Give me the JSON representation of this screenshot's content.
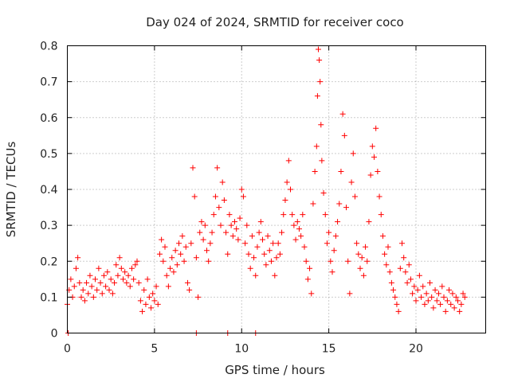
{
  "chart_data": {
    "type": "scatter",
    "title": "Day 024 of 2024, SRMTID for receiver coco",
    "xlabel": "GPS time / hours",
    "ylabel": "SRMTID / TECUs",
    "xlim": [
      0,
      24
    ],
    "ylim": [
      0,
      0.8
    ],
    "x_ticks": [
      0,
      5,
      10,
      15,
      20
    ],
    "x_tick_labels": [
      "0",
      "5",
      "10",
      "15",
      "20"
    ],
    "y_ticks": [
      0,
      0.1,
      0.2,
      0.3,
      0.4,
      0.5,
      0.6,
      0.7,
      0.8
    ],
    "y_tick_labels": [
      "0",
      "0.1",
      "0.2",
      "0.3",
      "0.4",
      "0.5",
      "0.6",
      "0.7",
      "0.8"
    ],
    "grid": true,
    "marker": "+",
    "color": "#ff0000",
    "series": [
      {
        "name": "SRMTID",
        "points": [
          [
            0.0,
            0.08
          ],
          [
            0.1,
            0.12
          ],
          [
            0.2,
            0.15
          ],
          [
            0.3,
            0.1
          ],
          [
            0.4,
            0.13
          ],
          [
            0.5,
            0.18
          ],
          [
            0.6,
            0.21
          ],
          [
            0.7,
            0.14
          ],
          [
            0.8,
            0.1
          ],
          [
            0.9,
            0.12
          ],
          [
            1.0,
            0.09
          ],
          [
            1.1,
            0.14
          ],
          [
            1.2,
            0.11
          ],
          [
            1.3,
            0.16
          ],
          [
            1.4,
            0.13
          ],
          [
            1.5,
            0.1
          ],
          [
            1.6,
            0.15
          ],
          [
            1.7,
            0.12
          ],
          [
            1.8,
            0.18
          ],
          [
            1.9,
            0.14
          ],
          [
            2.0,
            0.11
          ],
          [
            2.1,
            0.16
          ],
          [
            2.2,
            0.13
          ],
          [
            2.3,
            0.17
          ],
          [
            2.4,
            0.12
          ],
          [
            2.5,
            0.15
          ],
          [
            2.6,
            0.11
          ],
          [
            2.7,
            0.14
          ],
          [
            2.8,
            0.19
          ],
          [
            2.9,
            0.16
          ],
          [
            3.0,
            0.21
          ],
          [
            3.1,
            0.18
          ],
          [
            3.2,
            0.15
          ],
          [
            3.3,
            0.17
          ],
          [
            3.4,
            0.14
          ],
          [
            3.5,
            0.16
          ],
          [
            3.6,
            0.13
          ],
          [
            3.7,
            0.18
          ],
          [
            3.8,
            0.15
          ],
          [
            3.9,
            0.19
          ],
          [
            4.0,
            0.2
          ],
          [
            4.1,
            0.14
          ],
          [
            4.2,
            0.09
          ],
          [
            4.3,
            0.06
          ],
          [
            4.4,
            0.12
          ],
          [
            4.5,
            0.08
          ],
          [
            4.6,
            0.15
          ],
          [
            4.7,
            0.1
          ],
          [
            4.8,
            0.07
          ],
          [
            4.9,
            0.11
          ],
          [
            5.0,
            0.09
          ],
          [
            5.1,
            0.13
          ],
          [
            5.2,
            0.08
          ],
          [
            5.3,
            0.22
          ],
          [
            5.4,
            0.26
          ],
          [
            5.5,
            0.2
          ],
          [
            5.6,
            0.24
          ],
          [
            5.7,
            0.16
          ],
          [
            5.8,
            0.13
          ],
          [
            5.9,
            0.18
          ],
          [
            6.0,
            0.21
          ],
          [
            6.1,
            0.17
          ],
          [
            6.2,
            0.23
          ],
          [
            6.3,
            0.19
          ],
          [
            6.4,
            0.25
          ],
          [
            6.5,
            0.22
          ],
          [
            6.6,
            0.27
          ],
          [
            6.7,
            0.2
          ],
          [
            6.8,
            0.24
          ],
          [
            6.9,
            0.14
          ],
          [
            7.0,
            0.12
          ],
          [
            7.1,
            0.25
          ],
          [
            7.2,
            0.46
          ],
          [
            7.3,
            0.38
          ],
          [
            7.4,
            0.21
          ],
          [
            7.5,
            0.1
          ],
          [
            7.6,
            0.28
          ],
          [
            7.7,
            0.31
          ],
          [
            7.8,
            0.26
          ],
          [
            7.9,
            0.3
          ],
          [
            8.0,
            0.23
          ],
          [
            8.1,
            0.2
          ],
          [
            8.2,
            0.25
          ],
          [
            8.3,
            0.28
          ],
          [
            8.4,
            0.33
          ],
          [
            8.5,
            0.38
          ],
          [
            8.6,
            0.46
          ],
          [
            8.7,
            0.35
          ],
          [
            8.8,
            0.3
          ],
          [
            8.9,
            0.42
          ],
          [
            9.0,
            0.37
          ],
          [
            9.1,
            0.28
          ],
          [
            9.2,
            0.22
          ],
          [
            9.3,
            0.33
          ],
          [
            9.4,
            0.3
          ],
          [
            9.5,
            0.27
          ],
          [
            9.6,
            0.31
          ],
          [
            9.7,
            0.29
          ],
          [
            9.8,
            0.26
          ],
          [
            9.9,
            0.32
          ],
          [
            10.0,
            0.4
          ],
          [
            10.1,
            0.38
          ],
          [
            10.2,
            0.25
          ],
          [
            10.3,
            0.3
          ],
          [
            10.4,
            0.22
          ],
          [
            10.5,
            0.18
          ],
          [
            10.6,
            0.27
          ],
          [
            10.7,
            0.21
          ],
          [
            10.8,
            0.16
          ],
          [
            10.9,
            0.24
          ],
          [
            11.0,
            0.28
          ],
          [
            11.1,
            0.31
          ],
          [
            11.2,
            0.26
          ],
          [
            11.3,
            0.22
          ],
          [
            11.4,
            0.19
          ],
          [
            11.5,
            0.27
          ],
          [
            11.6,
            0.23
          ],
          [
            11.7,
            0.2
          ],
          [
            11.8,
            0.25
          ],
          [
            11.9,
            0.16
          ],
          [
            12.0,
            0.21
          ],
          [
            12.1,
            0.25
          ],
          [
            12.2,
            0.22
          ],
          [
            12.3,
            0.28
          ],
          [
            12.4,
            0.33
          ],
          [
            12.5,
            0.37
          ],
          [
            12.6,
            0.42
          ],
          [
            12.7,
            0.48
          ],
          [
            12.8,
            0.4
          ],
          [
            12.9,
            0.33
          ],
          [
            13.0,
            0.3
          ],
          [
            13.1,
            0.26
          ],
          [
            13.2,
            0.31
          ],
          [
            13.3,
            0.29
          ],
          [
            13.4,
            0.27
          ],
          [
            13.5,
            0.33
          ],
          [
            13.6,
            0.24
          ],
          [
            13.7,
            0.2
          ],
          [
            13.8,
            0.15
          ],
          [
            13.9,
            0.18
          ],
          [
            14.0,
            0.11
          ],
          [
            14.1,
            0.36
          ],
          [
            14.2,
            0.45
          ],
          [
            14.3,
            0.52
          ],
          [
            14.35,
            0.66
          ],
          [
            14.4,
            0.79
          ],
          [
            14.45,
            0.76
          ],
          [
            14.5,
            0.7
          ],
          [
            14.55,
            0.58
          ],
          [
            14.6,
            0.48
          ],
          [
            14.7,
            0.39
          ],
          [
            14.8,
            0.33
          ],
          [
            14.9,
            0.25
          ],
          [
            15.0,
            0.28
          ],
          [
            15.1,
            0.2
          ],
          [
            15.2,
            0.17
          ],
          [
            15.3,
            0.23
          ],
          [
            15.4,
            0.27
          ],
          [
            15.5,
            0.31
          ],
          [
            15.6,
            0.36
          ],
          [
            15.7,
            0.45
          ],
          [
            15.8,
            0.61
          ],
          [
            15.9,
            0.55
          ],
          [
            16.0,
            0.35
          ],
          [
            16.1,
            0.2
          ],
          [
            16.2,
            0.11
          ],
          [
            16.3,
            0.42
          ],
          [
            16.4,
            0.5
          ],
          [
            16.5,
            0.38
          ],
          [
            16.6,
            0.25
          ],
          [
            16.7,
            0.22
          ],
          [
            16.8,
            0.18
          ],
          [
            16.9,
            0.21
          ],
          [
            17.0,
            0.16
          ],
          [
            17.1,
            0.24
          ],
          [
            17.2,
            0.2
          ],
          [
            17.3,
            0.31
          ],
          [
            17.4,
            0.44
          ],
          [
            17.5,
            0.52
          ],
          [
            17.6,
            0.49
          ],
          [
            17.7,
            0.57
          ],
          [
            17.8,
            0.45
          ],
          [
            17.9,
            0.38
          ],
          [
            18.0,
            0.33
          ],
          [
            18.1,
            0.27
          ],
          [
            18.2,
            0.22
          ],
          [
            18.3,
            0.19
          ],
          [
            18.4,
            0.24
          ],
          [
            18.5,
            0.17
          ],
          [
            18.6,
            0.14
          ],
          [
            18.7,
            0.12
          ],
          [
            18.8,
            0.1
          ],
          [
            18.9,
            0.08
          ],
          [
            19.0,
            0.06
          ],
          [
            19.1,
            0.18
          ],
          [
            19.2,
            0.25
          ],
          [
            19.3,
            0.21
          ],
          [
            19.4,
            0.17
          ],
          [
            19.5,
            0.14
          ],
          [
            19.6,
            0.19
          ],
          [
            19.7,
            0.15
          ],
          [
            19.8,
            0.11
          ],
          [
            19.9,
            0.13
          ],
          [
            20.0,
            0.09
          ],
          [
            20.1,
            0.12
          ],
          [
            20.2,
            0.16
          ],
          [
            20.3,
            0.1
          ],
          [
            20.4,
            0.13
          ],
          [
            20.5,
            0.08
          ],
          [
            20.6,
            0.11
          ],
          [
            20.7,
            0.09
          ],
          [
            20.8,
            0.14
          ],
          [
            20.9,
            0.1
          ],
          [
            21.0,
            0.07
          ],
          [
            21.1,
            0.12
          ],
          [
            21.2,
            0.09
          ],
          [
            21.3,
            0.11
          ],
          [
            21.4,
            0.08
          ],
          [
            21.5,
            0.13
          ],
          [
            21.6,
            0.1
          ],
          [
            21.7,
            0.06
          ],
          [
            21.8,
            0.09
          ],
          [
            21.9,
            0.12
          ],
          [
            22.0,
            0.08
          ],
          [
            22.1,
            0.11
          ],
          [
            22.2,
            0.07
          ],
          [
            22.3,
            0.1
          ],
          [
            22.4,
            0.09
          ],
          [
            22.5,
            0.06
          ],
          [
            22.6,
            0.08
          ],
          [
            22.7,
            0.11
          ],
          [
            22.8,
            0.1
          ],
          [
            0.05,
            0.0
          ],
          [
            7.4,
            0.0
          ],
          [
            9.2,
            0.0
          ],
          [
            10.8,
            0.0
          ]
        ]
      }
    ]
  }
}
